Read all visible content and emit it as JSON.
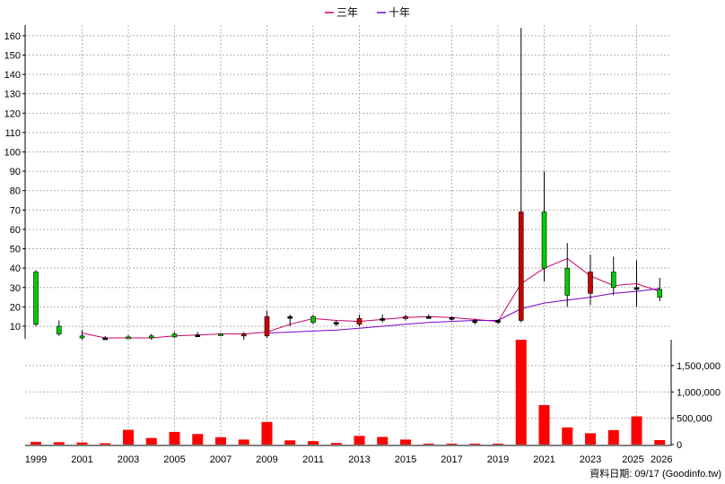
{
  "chart_data": [
    {
      "type": "candlestick",
      "title": "",
      "ylim": [
        0,
        166
      ],
      "yticks": [
        10,
        20,
        30,
        40,
        50,
        60,
        70,
        80,
        90,
        100,
        110,
        120,
        130,
        140,
        150,
        160
      ],
      "ytick_labels": [
        "10",
        "20",
        "30",
        "40",
        "50",
        "60",
        "70",
        "80",
        "90",
        "100",
        "110",
        "120",
        "130",
        "140",
        "150",
        "160"
      ],
      "grid": true,
      "legend": {
        "position": "top-center",
        "entries": [
          {
            "label": "三年",
            "color": "#cc0066"
          },
          {
            "label": "十年",
            "color": "#7a00cc"
          }
        ]
      },
      "years": [
        1999,
        2000,
        2001,
        2002,
        2003,
        2004,
        2005,
        2006,
        2007,
        2008,
        2009,
        2010,
        2011,
        2012,
        2013,
        2014,
        2015,
        2016,
        2017,
        2018,
        2019,
        2020,
        2021,
        2022,
        2023,
        2024,
        2025,
        2026
      ],
      "candles": [
        {
          "year": 1999,
          "open": 11,
          "close": 38,
          "high": 39,
          "low": 10,
          "color": "#00cc00"
        },
        {
          "year": 2000,
          "open": 6,
          "close": 10,
          "high": 13,
          "low": 5,
          "color": "#00cc00"
        },
        {
          "year": 2001,
          "open": 4,
          "close": 5,
          "high": 8,
          "low": 3,
          "color": "#00cc00"
        },
        {
          "year": 2002,
          "open": 4,
          "close": 4,
          "high": 5,
          "low": 3,
          "color": "#000000"
        },
        {
          "year": 2003,
          "open": 4,
          "close": 4.5,
          "high": 5.5,
          "low": 3.5,
          "color": "#00cc00"
        },
        {
          "year": 2004,
          "open": 4,
          "close": 5,
          "high": 6,
          "low": 3,
          "color": "#00cc00"
        },
        {
          "year": 2005,
          "open": 4.5,
          "close": 6,
          "high": 7,
          "low": 4,
          "color": "#00cc00"
        },
        {
          "year": 2006,
          "open": 5.5,
          "close": 5.5,
          "high": 7,
          "low": 4.5,
          "color": "#000000"
        },
        {
          "year": 2007,
          "open": 5.5,
          "close": 6,
          "high": 6.5,
          "low": 5,
          "color": "#00cc00"
        },
        {
          "year": 2008,
          "open": 6,
          "close": 5,
          "high": 7,
          "low": 3,
          "color": "#cc0000"
        },
        {
          "year": 2009,
          "open": 15,
          "close": 5,
          "high": 18,
          "low": 4,
          "color": "#cc0000"
        },
        {
          "year": 2010,
          "open": 15,
          "close": 15,
          "high": 16,
          "low": 10,
          "color": "#000000"
        },
        {
          "year": 2011,
          "open": 12,
          "close": 15,
          "high": 16,
          "low": 11,
          "color": "#00cc00"
        },
        {
          "year": 2012,
          "open": 12,
          "close": 12,
          "high": 13,
          "low": 10,
          "color": "#000000"
        },
        {
          "year": 2013,
          "open": 11,
          "close": 14,
          "high": 16,
          "low": 10,
          "color": "#cc0000"
        },
        {
          "year": 2014,
          "open": 13,
          "close": 14,
          "high": 16,
          "low": 12,
          "color": "#000000"
        },
        {
          "year": 2015,
          "open": 14,
          "close": 15,
          "high": 16,
          "low": 13,
          "color": "#cc0000"
        },
        {
          "year": 2016,
          "open": 14,
          "close": 15,
          "high": 16,
          "low": 14,
          "color": "#000000"
        },
        {
          "year": 2017,
          "open": 14,
          "close": 14.5,
          "high": 15,
          "low": 13,
          "color": "#000000"
        },
        {
          "year": 2018,
          "open": 12,
          "close": 13,
          "high": 14,
          "low": 11,
          "color": "#000000"
        },
        {
          "year": 2019,
          "open": 12,
          "close": 13,
          "high": 13.5,
          "low": 11,
          "color": "#000000"
        },
        {
          "year": 2020,
          "open": 69,
          "close": 13,
          "high": 164,
          "low": 12,
          "color": "#cc0000"
        },
        {
          "year": 2021,
          "open": 40,
          "close": 69,
          "high": 90,
          "low": 33,
          "color": "#00cc00"
        },
        {
          "year": 2022,
          "open": 26,
          "close": 40,
          "high": 53,
          "low": 20,
          "color": "#00cc00"
        },
        {
          "year": 2023,
          "open": 38,
          "close": 27,
          "high": 47,
          "low": 21,
          "color": "#cc0000"
        },
        {
          "year": 2024,
          "open": 30,
          "close": 38,
          "high": 46,
          "low": 26,
          "color": "#00cc00"
        },
        {
          "year": 2025,
          "open": 29,
          "close": 30,
          "high": 44,
          "low": 20,
          "color": "#000000"
        },
        {
          "year": 2026,
          "open": 25,
          "close": 29,
          "high": 35,
          "low": 23,
          "color": "#00cc00"
        }
      ],
      "series": [
        {
          "name": "三年",
          "color": "#cc0066",
          "x": [
            2001,
            2002,
            2003,
            2004,
            2005,
            2006,
            2007,
            2008,
            2009,
            2010,
            2011,
            2012,
            2013,
            2014,
            2015,
            2016,
            2017,
            2018,
            2019,
            2020,
            2021,
            2022,
            2023,
            2024,
            2025,
            2026
          ],
          "values": [
            6.5,
            4,
            4,
            4,
            5,
            5.5,
            6,
            6,
            7,
            11,
            14,
            13,
            12.5,
            13.5,
            14.5,
            15,
            14.5,
            13.5,
            12.5,
            32,
            40,
            45,
            36,
            31,
            32,
            28
          ]
        },
        {
          "name": "十年",
          "color": "#7a00cc",
          "x": [
            2009,
            2010,
            2011,
            2012,
            2013,
            2014,
            2015,
            2016,
            2017,
            2018,
            2019,
            2020,
            2021,
            2022,
            2023,
            2024,
            2025,
            2026
          ],
          "values": [
            6.5,
            7,
            7.5,
            8,
            9,
            10,
            11,
            12,
            12.5,
            13,
            13,
            19,
            22,
            23.5,
            25,
            27,
            28,
            29.5
          ]
        }
      ]
    },
    {
      "type": "bar",
      "title": "",
      "ylim": [
        0,
        2000000
      ],
      "yticks": [
        0,
        500000,
        1000000,
        1500000
      ],
      "ytick_labels": [
        "0",
        "500,000",
        "1,000,000",
        "1,500,000"
      ],
      "grid": true,
      "color": "#ff0000",
      "categories": [
        1999,
        2000,
        2001,
        2002,
        2003,
        2004,
        2005,
        2006,
        2007,
        2008,
        2009,
        2010,
        2011,
        2012,
        2013,
        2014,
        2015,
        2016,
        2017,
        2018,
        2019,
        2020,
        2021,
        2022,
        2023,
        2024,
        2025,
        2026
      ],
      "values": [
        50000,
        45000,
        40000,
        25000,
        280000,
        125000,
        240000,
        200000,
        140000,
        95000,
        430000,
        80000,
        65000,
        30000,
        165000,
        145000,
        95000,
        12000,
        12000,
        8000,
        8000,
        1990000,
        750000,
        325000,
        215000,
        275000,
        535000,
        85000
      ]
    }
  ],
  "x_axis": {
    "tick_labels": [
      "1999",
      "2001",
      "2003",
      "2005",
      "2007",
      "2009",
      "2011",
      "2013",
      "2015",
      "2017",
      "2019",
      "2021",
      "2023",
      "2025",
      "2026"
    ]
  },
  "footer": "資料日期: 09/17  (Goodinfo.tw)"
}
